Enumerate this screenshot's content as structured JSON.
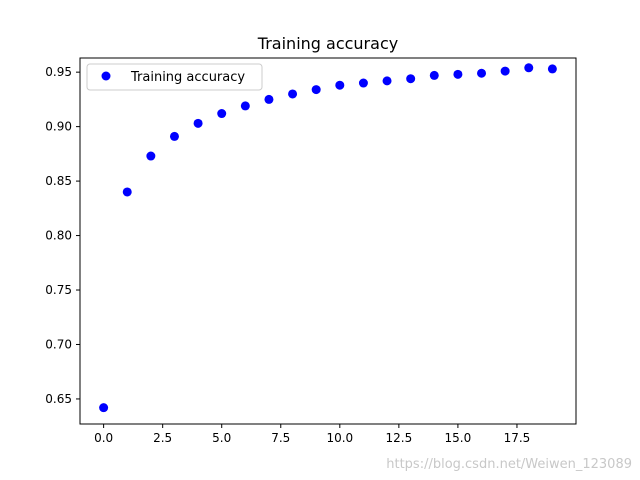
{
  "chart_data": {
    "type": "scatter",
    "title": "Training accuracy",
    "xlabel": "",
    "ylabel": "",
    "xlim": [
      -1.0,
      20.0
    ],
    "ylim": [
      0.627,
      0.963
    ],
    "xticks": [
      0.0,
      2.5,
      5.0,
      7.5,
      10.0,
      12.5,
      15.0,
      17.5
    ],
    "xtick_labels": [
      "0.0",
      "2.5",
      "5.0",
      "7.5",
      "10.0",
      "12.5",
      "15.0",
      "17.5"
    ],
    "yticks": [
      0.65,
      0.7,
      0.75,
      0.8,
      0.85,
      0.9,
      0.95
    ],
    "ytick_labels": [
      "0.65",
      "0.70",
      "0.75",
      "0.80",
      "0.85",
      "0.90",
      "0.95"
    ],
    "grid": false,
    "legend_position": "top-left",
    "series": [
      {
        "name": "Training accuracy",
        "color": "#0000ff",
        "marker": "circle",
        "x": [
          0,
          1,
          2,
          3,
          4,
          5,
          6,
          7,
          8,
          9,
          10,
          11,
          12,
          13,
          14,
          15,
          16,
          17,
          18,
          19
        ],
        "y": [
          0.642,
          0.84,
          0.873,
          0.891,
          0.903,
          0.912,
          0.919,
          0.925,
          0.93,
          0.934,
          0.938,
          0.94,
          0.942,
          0.944,
          0.947,
          0.948,
          0.949,
          0.951,
          0.954,
          0.953
        ]
      }
    ]
  },
  "watermark": "https://blog.csdn.net/Weiwen_123089"
}
